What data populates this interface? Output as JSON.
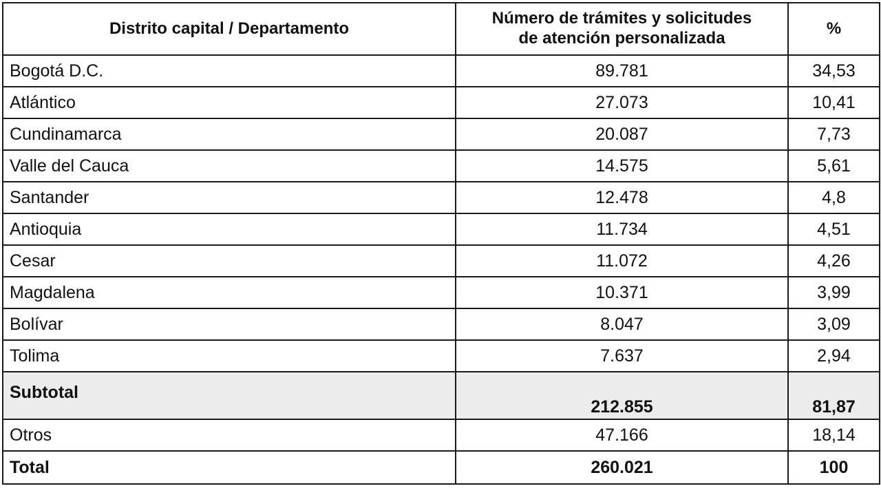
{
  "table": {
    "headers": {
      "col1": "Distrito capital / Departamento",
      "col2_line1": "Número de trámites y solicitudes",
      "col2_line2": "de atención personalizada",
      "col3": "%"
    },
    "rows": [
      {
        "name": "Bogotá D.C.",
        "count": "89.781",
        "pct": "34,53"
      },
      {
        "name": "Atlántico",
        "count": "27.073",
        "pct": "10,41"
      },
      {
        "name": "Cundinamarca",
        "count": "20.087",
        "pct": "7,73"
      },
      {
        "name": "Valle del Cauca",
        "count": "14.575",
        "pct": "5,61"
      },
      {
        "name": "Santander",
        "count": "12.478",
        "pct": "4,8"
      },
      {
        "name": "Antioquia",
        "count": "11.734",
        "pct": "4,51"
      },
      {
        "name": "Cesar",
        "count": "11.072",
        "pct": "4,26"
      },
      {
        "name": "Magdalena",
        "count": "10.371",
        "pct": "3,99"
      },
      {
        "name": "Bolívar",
        "count": "8.047",
        "pct": "3,09"
      },
      {
        "name": "Tolima",
        "count": "7.637",
        "pct": "2,94"
      }
    ],
    "subtotal": {
      "name": "Subtotal",
      "count": "212.855",
      "pct": "81,87"
    },
    "otros": {
      "name": "Otros",
      "count": "47.166",
      "pct": "18,14"
    },
    "total": {
      "name": "Total",
      "count": "260.021",
      "pct": "100"
    }
  },
  "colors": {
    "border": "#1a1a1a",
    "subtotal_background": "#ececec"
  }
}
